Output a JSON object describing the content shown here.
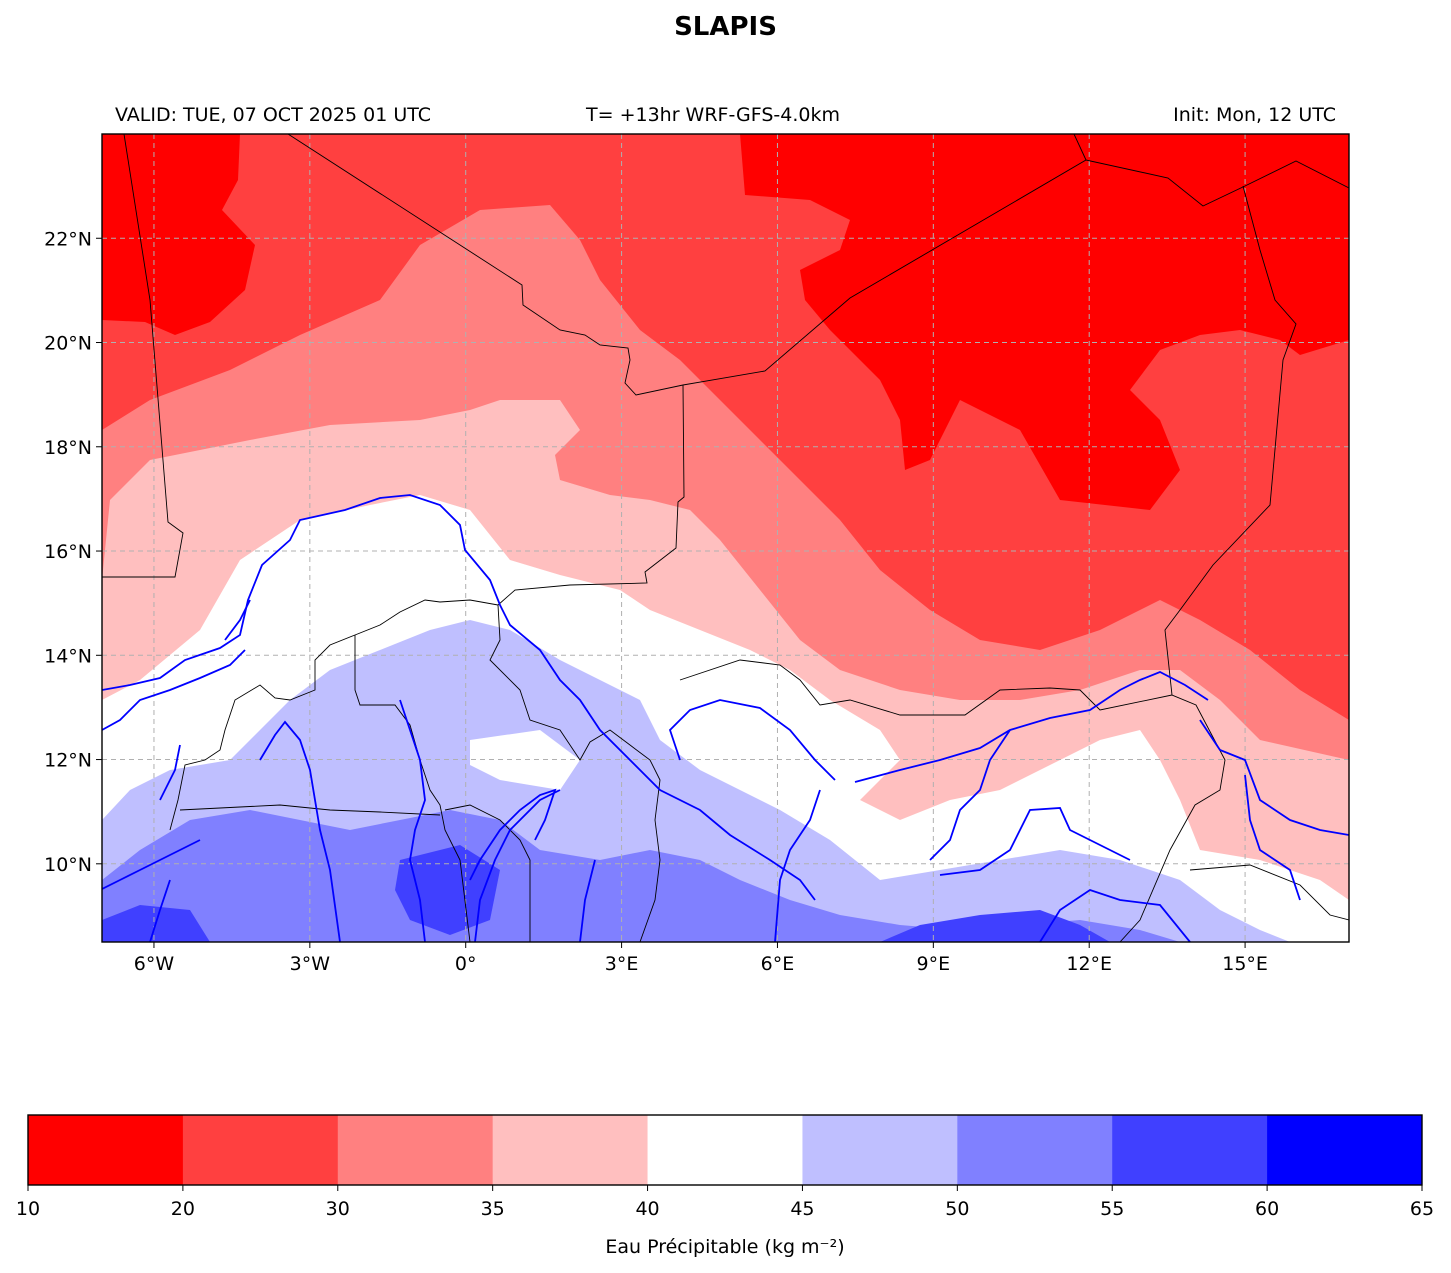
{
  "title": "SLAPIS",
  "header": {
    "valid": "VALID: TUE, 07 OCT 2025 01 UTC",
    "model": "T= +13hr WRF-GFS-4.0km",
    "init": "Init: Mon, 12 UTC"
  },
  "map": {
    "lon_range": [
      -7,
      17
    ],
    "lat_range": [
      8.5,
      24
    ],
    "lon_ticks": [
      {
        "value": -6,
        "label": "6°W"
      },
      {
        "value": -3,
        "label": "3°W"
      },
      {
        "value": 0,
        "label": "0°"
      },
      {
        "value": 3,
        "label": "3°E"
      },
      {
        "value": 6,
        "label": "6°E"
      },
      {
        "value": 9,
        "label": "9°E"
      },
      {
        "value": 12,
        "label": "12°E"
      },
      {
        "value": 15,
        "label": "15°E"
      }
    ],
    "lat_ticks": [
      {
        "value": 10,
        "label": "10°N"
      },
      {
        "value": 12,
        "label": "12°N"
      },
      {
        "value": 14,
        "label": "14°N"
      },
      {
        "value": 16,
        "label": "16°N"
      },
      {
        "value": 18,
        "label": "18°N"
      },
      {
        "value": 20,
        "label": "20°N"
      },
      {
        "value": 22,
        "label": "22°N"
      }
    ],
    "gridlines": true,
    "colors": {
      "border": "#000000",
      "river": "#0000ff",
      "grid": "#b0b0b0"
    }
  },
  "colorbar": {
    "bounds": [
      10,
      20,
      30,
      35,
      40,
      45,
      50,
      55,
      60,
      65
    ],
    "colors": [
      "#ff0000",
      "#ff4040",
      "#ff8080",
      "#ffbfbf",
      "#ffffff",
      "#bfbfff",
      "#8080ff",
      "#4040ff",
      "#0000ff"
    ],
    "label": "Eau Précipitable (kg m⁻²)"
  }
}
